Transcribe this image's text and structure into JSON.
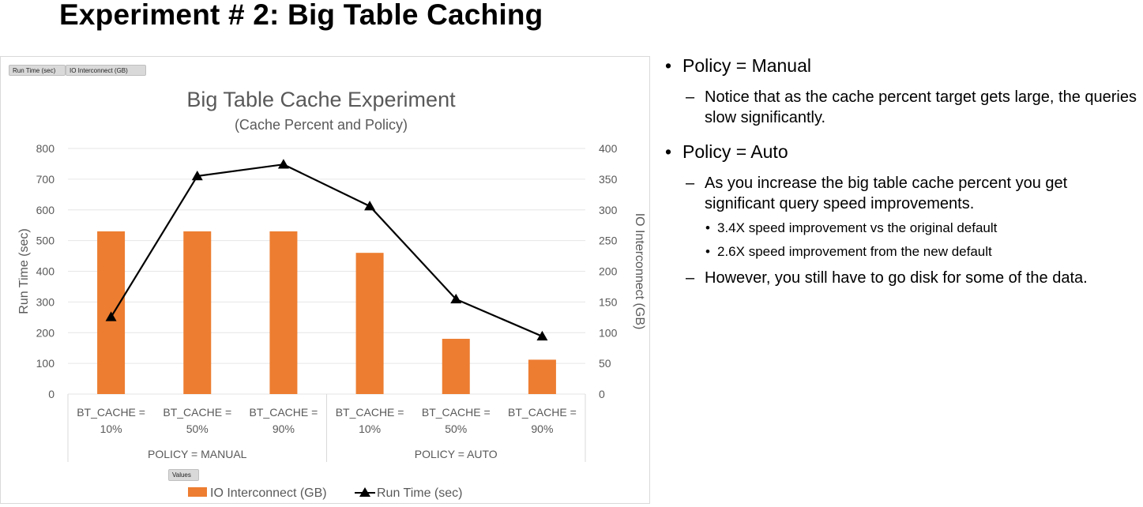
{
  "slide": {
    "title": "Experiment # 2: Big Table Caching"
  },
  "pivot": {
    "filter_run_time": "Run Time (sec)",
    "filter_io": "IO Interconnect (GB)",
    "values_button": "Values"
  },
  "chart_data": {
    "type": "bar",
    "title": "Big Table Cache Experiment",
    "subtitle": "(Cache Percent and Policy)",
    "categories": [
      "BT_CACHE = 10%",
      "BT_CACHE = 50%",
      "BT_CACHE = 90%",
      "BT_CACHE = 10%",
      "BT_CACHE = 50%",
      "BT_CACHE = 90%"
    ],
    "category_lines": [
      [
        "BT_CACHE =",
        "10%"
      ],
      [
        "BT_CACHE =",
        "50%"
      ],
      [
        "BT_CACHE =",
        "90%"
      ],
      [
        "BT_CACHE =",
        "10%"
      ],
      [
        "BT_CACHE =",
        "50%"
      ],
      [
        "BT_CACHE =",
        "90%"
      ]
    ],
    "groups": [
      {
        "label": "POLICY = MANUAL",
        "count": 3
      },
      {
        "label": "POLICY = AUTO",
        "count": 3
      }
    ],
    "series": [
      {
        "name": "IO Interconnect (GB)",
        "type": "bar",
        "axis": "right",
        "color": "#ED7D31",
        "values": [
          265,
          265,
          265,
          230,
          90,
          56
        ]
      },
      {
        "name": "Run Time (sec)",
        "type": "line",
        "axis": "left",
        "color": "#000000",
        "marker": "triangle",
        "values": [
          251,
          710,
          748,
          612,
          309,
          188
        ]
      }
    ],
    "left_axis": {
      "label": "Run Time (sec)",
      "min": 0,
      "max": 800,
      "step": 100
    },
    "right_axis": {
      "label": "IO Interconnect (GB)",
      "min": 0,
      "max": 400,
      "step": 50
    },
    "grid": true,
    "legend_position": "bottom"
  },
  "notes": [
    {
      "level": 1,
      "text": "Policy = Manual"
    },
    {
      "level": 2,
      "text": "Notice that as the cache percent target gets large, the queries slow significantly."
    },
    {
      "level": 1,
      "text": "Policy = Auto"
    },
    {
      "level": 2,
      "text": "As you increase the big table cache percent you get significant query speed improvements."
    },
    {
      "level": 3,
      "text": "3.4X speed improvement vs the original default"
    },
    {
      "level": 3,
      "text": "2.6X speed improvement from the new default"
    },
    {
      "level": 2,
      "text": "However, you still have to go disk for some of the data."
    }
  ]
}
